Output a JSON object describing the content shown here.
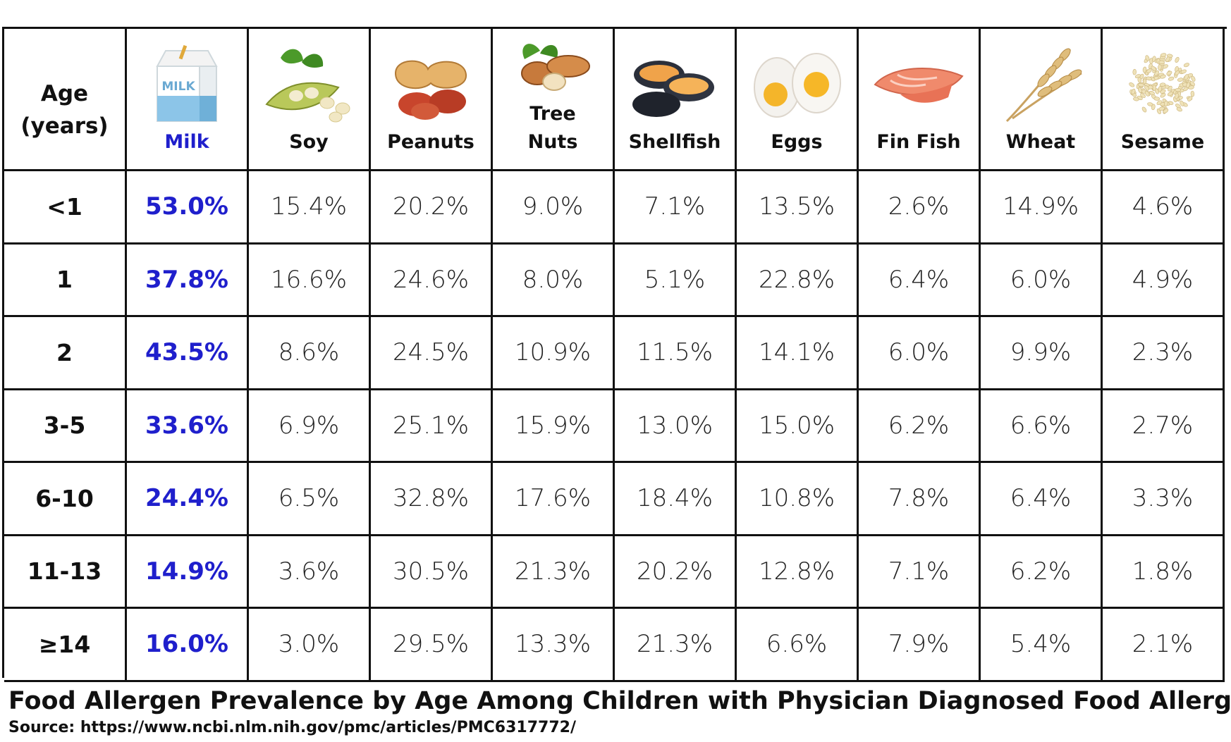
{
  "colors": {
    "milk_accent": "#1f1fcc",
    "grid_line": "#111111"
  },
  "table": {
    "age_header": "Age\n(years)",
    "columns": [
      {
        "label": "Milk",
        "icon": "milk-carton-icon",
        "highlight": true
      },
      {
        "label": "Soy",
        "icon": "soybean-icon"
      },
      {
        "label": "Peanuts",
        "icon": "peanut-icon"
      },
      {
        "label": "Tree\nNuts",
        "icon": "tree-nut-icon"
      },
      {
        "label": "Shellfish",
        "icon": "mussel-icon"
      },
      {
        "label": "Eggs",
        "icon": "boiled-egg-icon"
      },
      {
        "label": "Fin Fish",
        "icon": "salmon-fillet-icon"
      },
      {
        "label": "Wheat",
        "icon": "wheat-icon"
      },
      {
        "label": "Sesame",
        "icon": "sesame-seeds-icon"
      }
    ],
    "rows": [
      {
        "age": "<1",
        "values": [
          "53.0%",
          "15.4%",
          "20.2%",
          "9.0%",
          "7.1%",
          "13.5%",
          "2.6%",
          "14.9%",
          "4.6%"
        ]
      },
      {
        "age": "1",
        "values": [
          "37.8%",
          "16.6%",
          "24.6%",
          "8.0%",
          "5.1%",
          "22.8%",
          "6.4%",
          "6.0%",
          "4.9%"
        ]
      },
      {
        "age": "2",
        "values": [
          "43.5%",
          "8.6%",
          "24.5%",
          "10.9%",
          "11.5%",
          "14.1%",
          "6.0%",
          "9.9%",
          "2.3%"
        ]
      },
      {
        "age": "3-5",
        "values": [
          "33.6%",
          "6.9%",
          "25.1%",
          "15.9%",
          "13.0%",
          "15.0%",
          "6.2%",
          "6.6%",
          "2.7%"
        ]
      },
      {
        "age": "6-10",
        "values": [
          "24.4%",
          "6.5%",
          "32.8%",
          "17.6%",
          "18.4%",
          "10.8%",
          "7.8%",
          "6.4%",
          "3.3%"
        ]
      },
      {
        "age": "11-13",
        "values": [
          "14.9%",
          "3.6%",
          "30.5%",
          "21.3%",
          "20.2%",
          "12.8%",
          "7.1%",
          "6.2%",
          "1.8%"
        ]
      },
      {
        "age": "≥14",
        "values": [
          "16.0%",
          "3.0%",
          "29.5%",
          "13.3%",
          "21.3%",
          "6.6%",
          "7.9%",
          "5.4%",
          "2.1%"
        ]
      }
    ]
  },
  "chart_data": {
    "type": "table",
    "title": "Food Allergen Prevalence by Age Among Children with Physician Diagnosed Food Allergy",
    "source": "Source: https://www.ncbi.nlm.nih.gov/pmc/articles/PMC6317772/",
    "categories": [
      "<1",
      "1",
      "2",
      "3-5",
      "6-10",
      "11-13",
      "≥14"
    ],
    "series": [
      {
        "name": "Milk",
        "values": [
          53.0,
          37.8,
          43.5,
          33.6,
          24.4,
          14.9,
          16.0
        ]
      },
      {
        "name": "Soy",
        "values": [
          15.4,
          16.6,
          8.6,
          6.9,
          6.5,
          3.6,
          3.0
        ]
      },
      {
        "name": "Peanuts",
        "values": [
          20.2,
          24.6,
          24.5,
          25.1,
          32.8,
          30.5,
          29.5
        ]
      },
      {
        "name": "Tree Nuts",
        "values": [
          9.0,
          8.0,
          10.9,
          15.9,
          17.6,
          21.3,
          13.3
        ]
      },
      {
        "name": "Shellfish",
        "values": [
          7.1,
          5.1,
          11.5,
          13.0,
          18.4,
          20.2,
          21.3
        ]
      },
      {
        "name": "Eggs",
        "values": [
          13.5,
          22.8,
          14.1,
          15.0,
          10.8,
          12.8,
          6.6
        ]
      },
      {
        "name": "Fin Fish",
        "values": [
          2.6,
          6.4,
          6.0,
          6.2,
          7.8,
          7.1,
          7.9
        ]
      },
      {
        "name": "Wheat",
        "values": [
          14.9,
          6.0,
          9.9,
          6.6,
          6.4,
          6.2,
          5.4
        ]
      },
      {
        "name": "Sesame",
        "values": [
          4.6,
          4.9,
          2.3,
          2.7,
          3.3,
          1.8,
          2.1
        ]
      }
    ]
  }
}
